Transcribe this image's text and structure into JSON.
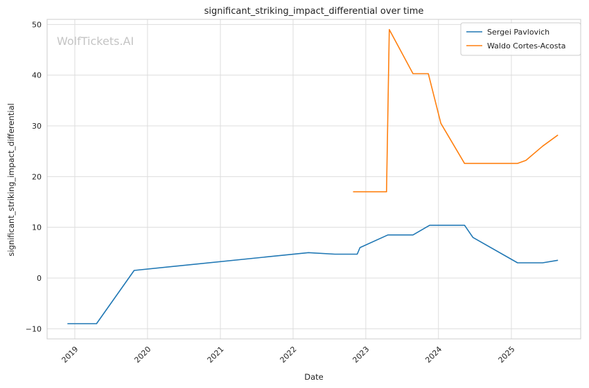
{
  "chart_data": {
    "type": "line",
    "title": "significant_striking_impact_differential over time",
    "xlabel": "Date",
    "ylabel": "significant_striking_impact_differential",
    "watermark": "WolfTickets.AI",
    "xlim": [
      "2018-08-15",
      "2025-12-15"
    ],
    "ylim": [
      -12,
      51
    ],
    "x_ticks": [
      "2019-01-01",
      "2020-01-01",
      "2021-01-01",
      "2022-01-01",
      "2023-01-01",
      "2024-01-01",
      "2025-01-01"
    ],
    "x_tick_labels": [
      "2019",
      "2020",
      "2021",
      "2022",
      "2023",
      "2024",
      "2025"
    ],
    "y_ticks": [
      -10,
      0,
      10,
      20,
      30,
      40,
      50
    ],
    "y_tick_labels": [
      "−10",
      "0",
      "10",
      "20",
      "30",
      "40",
      "50"
    ],
    "grid": true,
    "legend_position": "top-right",
    "series": [
      {
        "name": "Sergei Pavlovich",
        "color": "#1f77b4",
        "points": [
          {
            "x": "2018-11-25",
            "y": -9.0
          },
          {
            "x": "2019-04-20",
            "y": -9.0
          },
          {
            "x": "2019-10-26",
            "y": 1.5
          },
          {
            "x": "2022-03-19",
            "y": 5.0
          },
          {
            "x": "2022-07-30",
            "y": 4.7
          },
          {
            "x": "2022-11-19",
            "y": 4.7
          },
          {
            "x": "2022-12-03",
            "y": 6.0
          },
          {
            "x": "2023-04-22",
            "y": 8.5
          },
          {
            "x": "2023-08-26",
            "y": 8.5
          },
          {
            "x": "2023-11-18",
            "y": 10.4
          },
          {
            "x": "2024-05-11",
            "y": 10.4
          },
          {
            "x": "2024-06-22",
            "y": 8.0
          },
          {
            "x": "2025-02-01",
            "y": 3.0
          },
          {
            "x": "2025-06-07",
            "y": 3.0
          },
          {
            "x": "2025-08-23",
            "y": 3.5
          }
        ]
      },
      {
        "name": "Waldo Cortes-Acosta",
        "color": "#ff7f0e",
        "points": [
          {
            "x": "2022-10-29",
            "y": 17.0
          },
          {
            "x": "2023-04-15",
            "y": 17.0
          },
          {
            "x": "2023-04-29",
            "y": 49.0
          },
          {
            "x": "2023-08-26",
            "y": 40.3
          },
          {
            "x": "2023-11-11",
            "y": 40.3
          },
          {
            "x": "2024-01-13",
            "y": 30.5
          },
          {
            "x": "2024-05-11",
            "y": 22.6
          },
          {
            "x": "2025-02-01",
            "y": 22.6
          },
          {
            "x": "2025-03-15",
            "y": 23.2
          },
          {
            "x": "2025-06-07",
            "y": 26.0
          },
          {
            "x": "2025-08-23",
            "y": 28.2
          }
        ]
      }
    ]
  }
}
